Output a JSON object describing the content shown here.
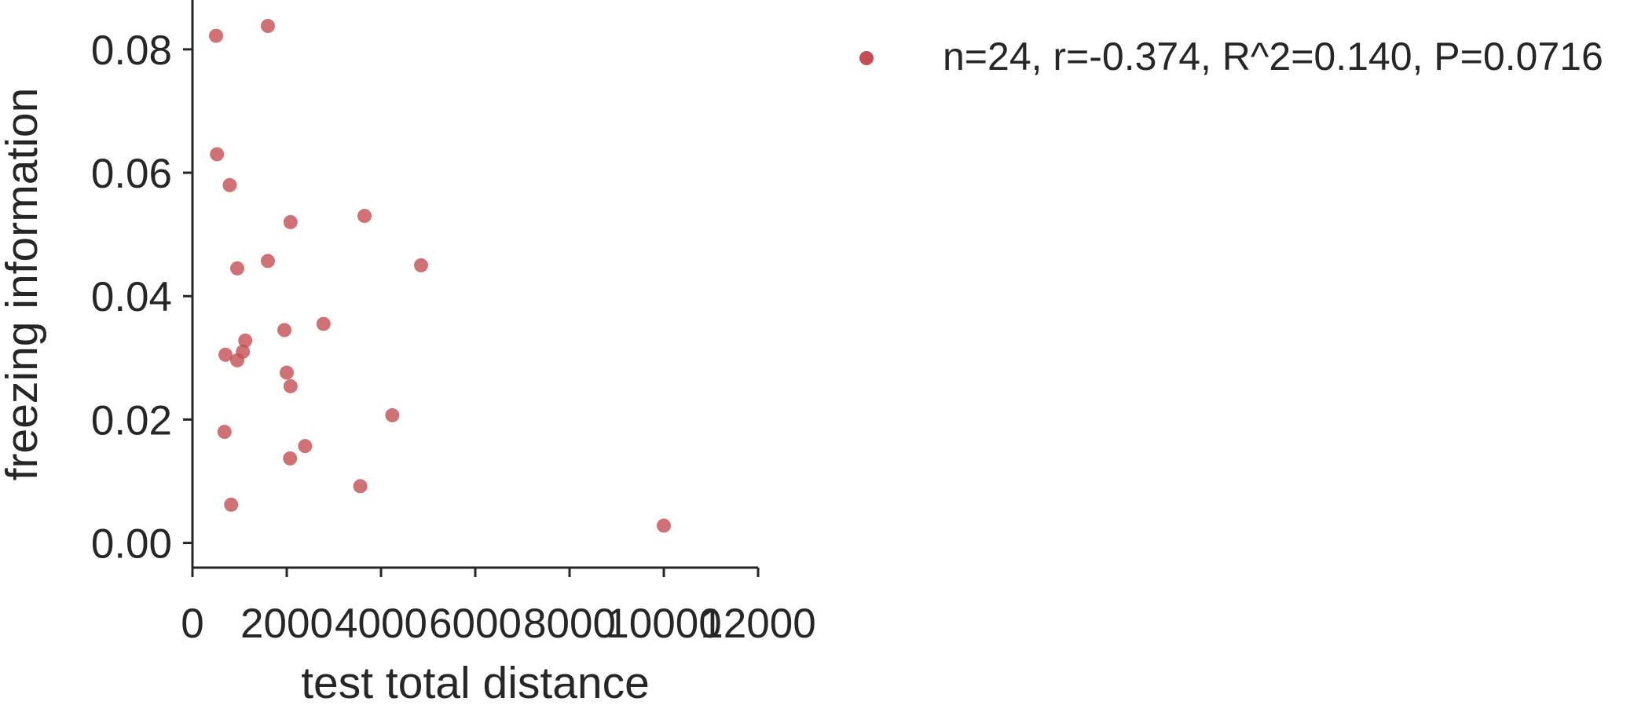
{
  "chart_data": {
    "type": "scatter",
    "xlabel": "test total distance",
    "ylabel": "freezing information",
    "xlim": [
      0,
      12000
    ],
    "ylim": [
      -0.004,
      0.088
    ],
    "xticks": [
      0,
      2000,
      4000,
      6000,
      8000,
      10000,
      12000
    ],
    "xtick_labels": [
      "0",
      "2000",
      "4000",
      "6000",
      "8000",
      "10000",
      "12000"
    ],
    "yticks": [
      0.0,
      0.02,
      0.04,
      0.06,
      0.08
    ],
    "ytick_labels": [
      "0.00",
      "0.02",
      "0.04",
      "0.06",
      "0.08"
    ],
    "grid": false,
    "legend_position": "top-right, outside plot",
    "series": [
      {
        "name": "n=24, r=-0.374, R^2=0.140, P=0.0716",
        "color": "#c44e52",
        "points": [
          {
            "x": 500,
            "y": 0.0822
          },
          {
            "x": 1600,
            "y": 0.0838
          },
          {
            "x": 520,
            "y": 0.063
          },
          {
            "x": 790,
            "y": 0.058
          },
          {
            "x": 2080,
            "y": 0.052
          },
          {
            "x": 3650,
            "y": 0.053
          },
          {
            "x": 1600,
            "y": 0.0457
          },
          {
            "x": 950,
            "y": 0.0445
          },
          {
            "x": 4850,
            "y": 0.045
          },
          {
            "x": 2780,
            "y": 0.0355
          },
          {
            "x": 1950,
            "y": 0.0345
          },
          {
            "x": 1120,
            "y": 0.0328
          },
          {
            "x": 1070,
            "y": 0.031
          },
          {
            "x": 700,
            "y": 0.0305
          },
          {
            "x": 950,
            "y": 0.0296
          },
          {
            "x": 2000,
            "y": 0.0276
          },
          {
            "x": 2080,
            "y": 0.0254
          },
          {
            "x": 4240,
            "y": 0.0207
          },
          {
            "x": 680,
            "y": 0.018
          },
          {
            "x": 2390,
            "y": 0.0157
          },
          {
            "x": 2070,
            "y": 0.0137
          },
          {
            "x": 3560,
            "y": 0.0092
          },
          {
            "x": 820,
            "y": 0.0062
          },
          {
            "x": 10000,
            "y": 0.0028
          }
        ]
      }
    ]
  }
}
